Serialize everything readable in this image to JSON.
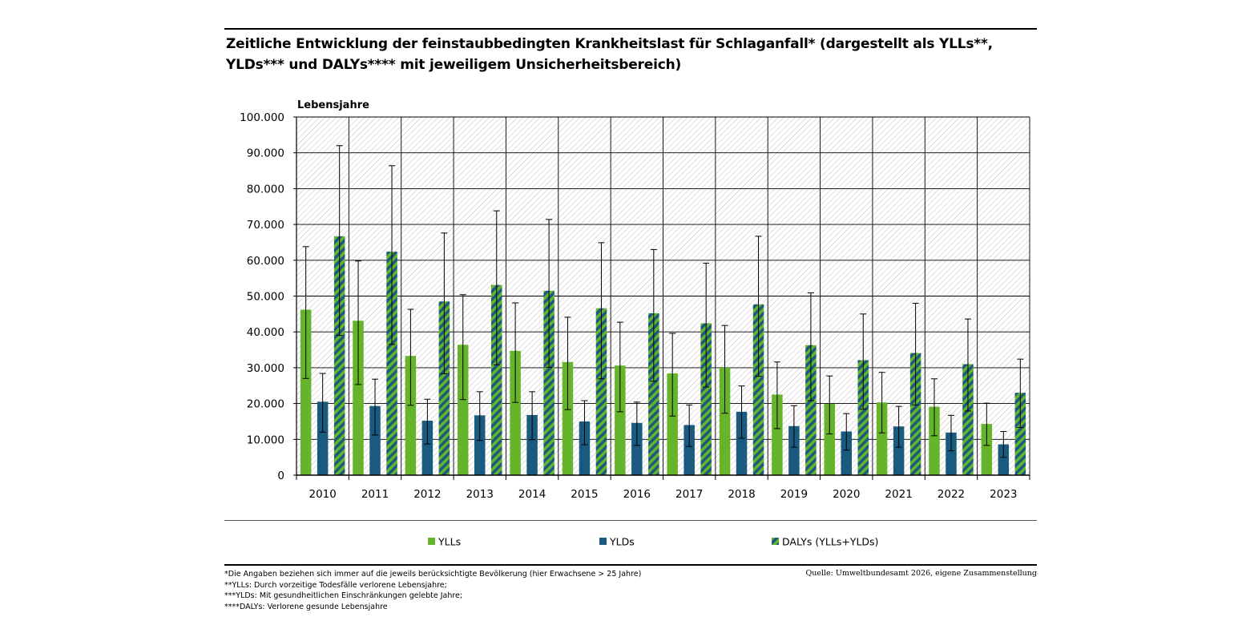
{
  "title": "Zeitliche Entwicklung der feinstaubbedingten Krankheitslast für Schlaganfall* (dargestellt als YLLs**, YLDs*** und DALYs**** mit jeweiligem Unsicherheitsbereich)",
  "footnotes": [
    "*Die Angaben beziehen sich immer auf die jeweils berücksichtigte Bevölkerung (hier Erwachsene > 25 Jahre)",
    "**YLLs: Durch vorzeitige Todesfälle verlorene Lebensjahre;",
    "***YLDs: Mit gesundheitlichen Einschränkungen gelebte Jahre;",
    "****DALYs: Verlorene gesunde Lebensjahre"
  ],
  "source": "Quelle: Umweltbundesamt 2026, eigene Zusammenstellung",
  "chart_data": {
    "type": "bar",
    "ylabel": "Lebensjahre",
    "ylim": [
      0,
      100000
    ],
    "yticks": [
      0,
      10000,
      20000,
      30000,
      40000,
      50000,
      60000,
      70000,
      80000,
      90000,
      100000
    ],
    "ytick_labels": [
      "0",
      "10.000",
      "20.000",
      "30.000",
      "40.000",
      "50.000",
      "60.000",
      "70.000",
      "80.000",
      "90.000",
      "100.000"
    ],
    "grid": true,
    "legend_position": "bottom",
    "categories": [
      "2010",
      "2011",
      "2012",
      "2013",
      "2014",
      "2015",
      "2016",
      "2017",
      "2018",
      "2019",
      "2020",
      "2021",
      "2022",
      "2023"
    ],
    "series": [
      {
        "name": "YLLs",
        "color": "#66b42c",
        "values": [
          46200,
          43100,
          33300,
          36400,
          34700,
          31600,
          30600,
          28400,
          30000,
          22500,
          19900,
          20300,
          19100,
          14300
        ],
        "lower": [
          27000,
          25300,
          19500,
          21100,
          20300,
          18300,
          17700,
          16500,
          17300,
          13000,
          11500,
          11800,
          11000,
          8300
        ],
        "upper": [
          63800,
          59800,
          46300,
          50400,
          48100,
          44100,
          42700,
          39600,
          41800,
          31600,
          27700,
          28700,
          26900,
          20100
        ]
      },
      {
        "name": "YLDs",
        "color": "#1a5a7e",
        "values": [
          20500,
          19300,
          15200,
          16700,
          16800,
          15000,
          14600,
          14000,
          17700,
          13700,
          12200,
          13600,
          11900,
          8600
        ],
        "lower": [
          12000,
          11200,
          8700,
          9700,
          9900,
          8500,
          8300,
          8000,
          10300,
          7800,
          7000,
          7800,
          6800,
          5000
        ],
        "upper": [
          28400,
          26800,
          21200,
          23300,
          23300,
          20800,
          20400,
          19600,
          24900,
          19400,
          17200,
          19200,
          16700,
          12200
        ]
      },
      {
        "name": "DALYs (YLLs+YLDs)",
        "color": "#1a5a7e",
        "color2": "#66b42c",
        "pattern": "diagonal-stripes",
        "values": [
          66700,
          62400,
          48500,
          53100,
          51500,
          46600,
          45200,
          42400,
          47700,
          36300,
          32100,
          34100,
          31000,
          23000
        ],
        "lower": [
          39000,
          36500,
          28300,
          30800,
          30100,
          26900,
          26200,
          24600,
          27600,
          20800,
          18400,
          19600,
          17900,
          13300
        ],
        "upper": [
          92000,
          86400,
          67600,
          73800,
          71400,
          64900,
          63000,
          59200,
          66700,
          50900,
          45000,
          48000,
          43600,
          32400
        ]
      }
    ]
  }
}
